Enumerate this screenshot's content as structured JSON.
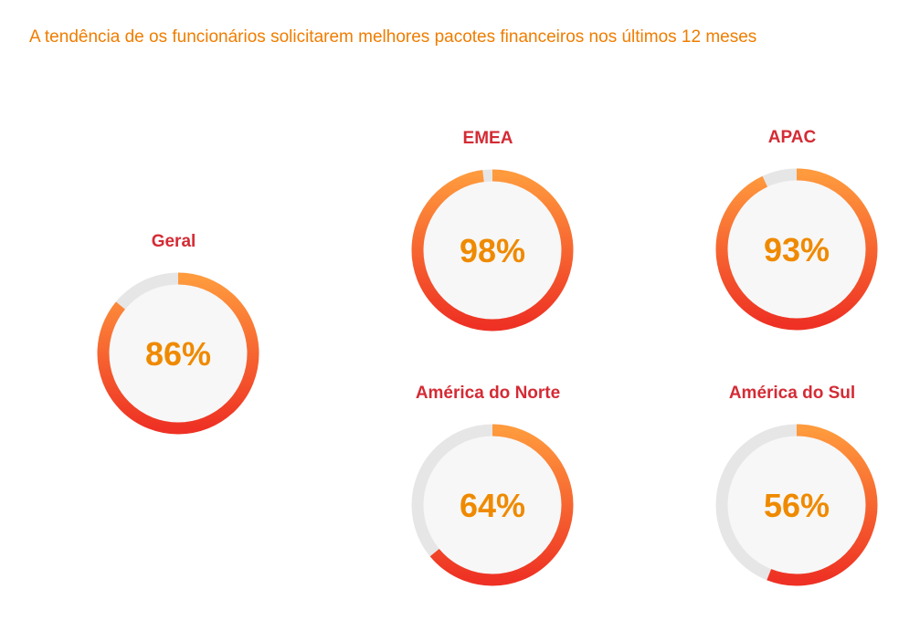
{
  "title": "A tendência de os funcionários solicitarem melhores pacotes financeiros nos últimos 12 meses",
  "colors": {
    "title": "#ef7d00",
    "label": "#d42b35",
    "value": "#ef8a00",
    "track": "#e6e6e6",
    "inner": "#f7f7f7",
    "gradient_start": "#ff9a3d",
    "gradient_end": "#ee3124"
  },
  "chart_data": [
    {
      "type": "pie",
      "label": "Geral",
      "value": 86,
      "display": "86%"
    },
    {
      "type": "pie",
      "label": "EMEA",
      "value": 98,
      "display": "98%"
    },
    {
      "type": "pie",
      "label": "APAC",
      "value": 93,
      "display": "93%"
    },
    {
      "type": "pie",
      "label": "América do Norte",
      "value": 64,
      "display": "64%"
    },
    {
      "type": "pie",
      "label": "América do Sul",
      "value": 56,
      "display": "56%"
    }
  ]
}
